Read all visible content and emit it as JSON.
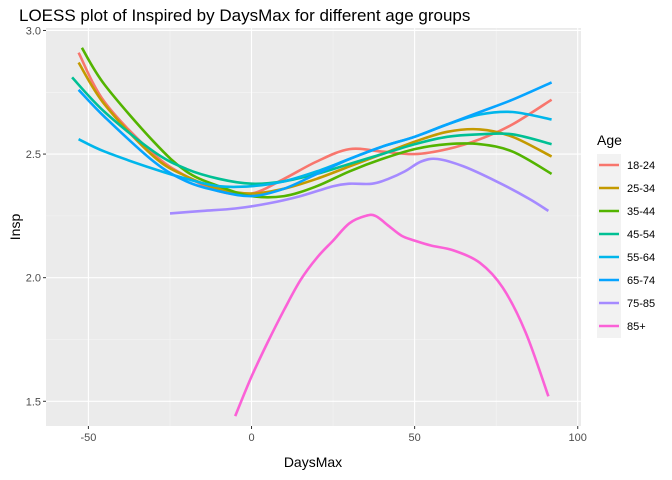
{
  "chart_data": {
    "type": "line",
    "title": "LOESS plot of Inspired by DaysMax for different age groups",
    "xlabel": "DaysMax",
    "ylabel": "Insp",
    "xlim": [
      -63,
      101
    ],
    "ylim": [
      1.4,
      3.01
    ],
    "xticks": [
      -50,
      0,
      50,
      100
    ],
    "yticks": [
      1.5,
      2.0,
      2.5,
      3.0
    ],
    "xtick_labels": [
      "-50",
      "0",
      "50",
      "100"
    ],
    "ytick_labels": [
      "1.5",
      "2.0",
      "2.5",
      "3.0"
    ],
    "grid": true,
    "legend": {
      "title": "Age",
      "position": "right"
    },
    "series": [
      {
        "name": "18-24",
        "color": "#F8766D",
        "points": [
          [
            -53,
            2.91
          ],
          [
            -45,
            2.71
          ],
          [
            -30,
            2.5
          ],
          [
            -20,
            2.41
          ],
          [
            -10,
            2.35
          ],
          [
            0,
            2.34
          ],
          [
            10,
            2.4
          ],
          [
            20,
            2.47
          ],
          [
            30,
            2.52
          ],
          [
            40,
            2.51
          ],
          [
            50,
            2.5
          ],
          [
            60,
            2.52
          ],
          [
            70,
            2.56
          ],
          [
            80,
            2.62
          ],
          [
            92,
            2.72
          ]
        ]
      },
      {
        "name": "25-34",
        "color": "#C49A00",
        "points": [
          [
            -53,
            2.87
          ],
          [
            -45,
            2.7
          ],
          [
            -30,
            2.49
          ],
          [
            -20,
            2.41
          ],
          [
            -10,
            2.36
          ],
          [
            0,
            2.34
          ],
          [
            10,
            2.36
          ],
          [
            20,
            2.4
          ],
          [
            30,
            2.45
          ],
          [
            40,
            2.5
          ],
          [
            50,
            2.55
          ],
          [
            60,
            2.59
          ],
          [
            70,
            2.6
          ],
          [
            80,
            2.57
          ],
          [
            92,
            2.49
          ]
        ]
      },
      {
        "name": "35-44",
        "color": "#53B400",
        "points": [
          [
            -52,
            2.93
          ],
          [
            -45,
            2.78
          ],
          [
            -30,
            2.55
          ],
          [
            -20,
            2.43
          ],
          [
            -10,
            2.37
          ],
          [
            0,
            2.33
          ],
          [
            10,
            2.33
          ],
          [
            20,
            2.37
          ],
          [
            30,
            2.43
          ],
          [
            40,
            2.48
          ],
          [
            50,
            2.52
          ],
          [
            60,
            2.54
          ],
          [
            70,
            2.54
          ],
          [
            80,
            2.51
          ],
          [
            92,
            2.42
          ]
        ]
      },
      {
        "name": "45-54",
        "color": "#00C094",
        "points": [
          [
            -55,
            2.81
          ],
          [
            -45,
            2.67
          ],
          [
            -30,
            2.51
          ],
          [
            -20,
            2.44
          ],
          [
            -10,
            2.4
          ],
          [
            0,
            2.38
          ],
          [
            10,
            2.39
          ],
          [
            20,
            2.42
          ],
          [
            30,
            2.46
          ],
          [
            40,
            2.5
          ],
          [
            50,
            2.54
          ],
          [
            60,
            2.57
          ],
          [
            70,
            2.58
          ],
          [
            80,
            2.58
          ],
          [
            92,
            2.54
          ]
        ]
      },
      {
        "name": "55-64",
        "color": "#00B6EB",
        "points": [
          [
            -53,
            2.56
          ],
          [
            -45,
            2.51
          ],
          [
            -30,
            2.44
          ],
          [
            -20,
            2.4
          ],
          [
            -10,
            2.37
          ],
          [
            0,
            2.37
          ],
          [
            10,
            2.39
          ],
          [
            20,
            2.43
          ],
          [
            30,
            2.48
          ],
          [
            40,
            2.53
          ],
          [
            50,
            2.57
          ],
          [
            60,
            2.62
          ],
          [
            70,
            2.66
          ],
          [
            80,
            2.67
          ],
          [
            92,
            2.64
          ]
        ]
      },
      {
        "name": "65-74",
        "color": "#06A4FF",
        "points": [
          [
            -53,
            2.76
          ],
          [
            -45,
            2.65
          ],
          [
            -30,
            2.47
          ],
          [
            -20,
            2.39
          ],
          [
            -10,
            2.35
          ],
          [
            0,
            2.33
          ],
          [
            10,
            2.36
          ],
          [
            20,
            2.42
          ],
          [
            30,
            2.48
          ],
          [
            40,
            2.53
          ],
          [
            50,
            2.57
          ],
          [
            60,
            2.62
          ],
          [
            70,
            2.67
          ],
          [
            80,
            2.72
          ],
          [
            92,
            2.79
          ]
        ]
      },
      {
        "name": "75-85",
        "color": "#A58AFF",
        "points": [
          [
            -25,
            2.26
          ],
          [
            -15,
            2.27
          ],
          [
            -5,
            2.28
          ],
          [
            5,
            2.3
          ],
          [
            15,
            2.33
          ],
          [
            25,
            2.37
          ],
          [
            30,
            2.38
          ],
          [
            37,
            2.38
          ],
          [
            42,
            2.4
          ],
          [
            47,
            2.43
          ],
          [
            52,
            2.47
          ],
          [
            57,
            2.48
          ],
          [
            65,
            2.45
          ],
          [
            75,
            2.39
          ],
          [
            85,
            2.32
          ],
          [
            91,
            2.27
          ]
        ]
      },
      {
        "name": "85+",
        "color": "#FB61D7",
        "points": [
          [
            -5,
            1.44
          ],
          [
            0,
            1.6
          ],
          [
            5,
            1.74
          ],
          [
            10,
            1.87
          ],
          [
            15,
            1.99
          ],
          [
            20,
            2.08
          ],
          [
            25,
            2.15
          ],
          [
            30,
            2.22
          ],
          [
            35,
            2.25
          ],
          [
            38,
            2.25
          ],
          [
            42,
            2.21
          ],
          [
            46,
            2.17
          ],
          [
            50,
            2.15
          ],
          [
            55,
            2.13
          ],
          [
            62,
            2.11
          ],
          [
            70,
            2.06
          ],
          [
            77,
            1.96
          ],
          [
            84,
            1.78
          ],
          [
            91,
            1.52
          ]
        ]
      }
    ]
  }
}
